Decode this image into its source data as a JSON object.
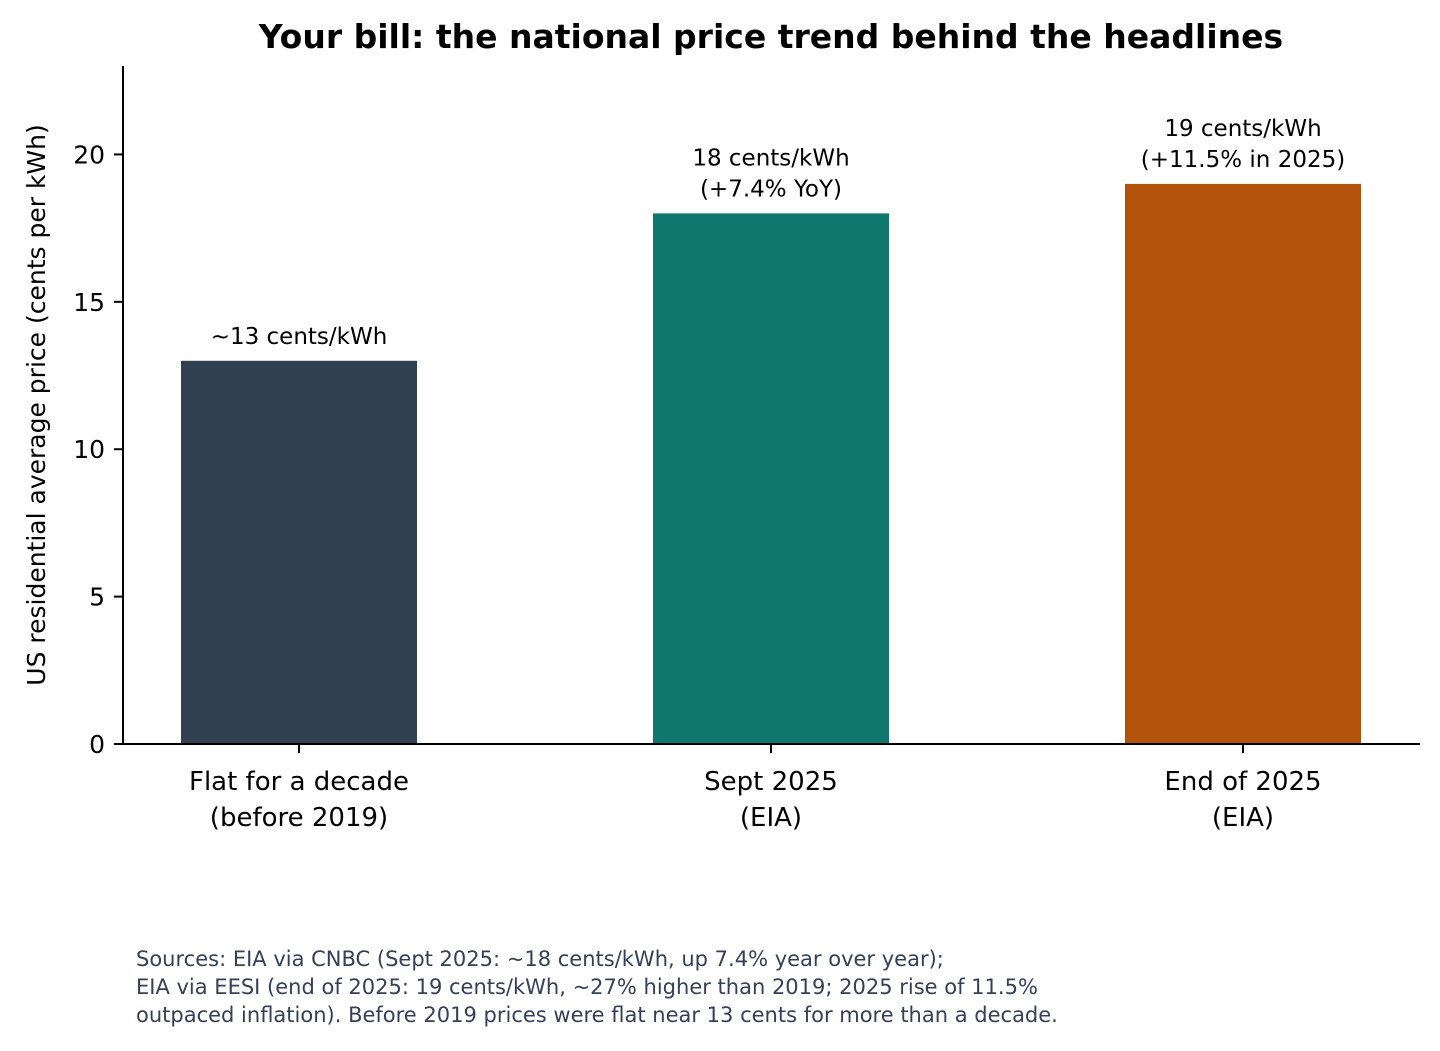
{
  "chart_data": {
    "type": "bar",
    "title": "Your bill: the national price trend behind the headlines",
    "xlabel": "",
    "ylabel": "US residential average price (cents per kWh)",
    "ylim": [
      0,
      23
    ],
    "yticks": [
      0,
      5,
      10,
      15,
      20
    ],
    "grid": false,
    "categories": [
      [
        "Flat for a decade",
        "(before 2019)"
      ],
      [
        "Sept 2025",
        "(EIA)"
      ],
      [
        "End of 2025",
        "(EIA)"
      ]
    ],
    "values": [
      13,
      18,
      19
    ],
    "bar_colors": [
      "#324152",
      "#10776f",
      "#b2520b"
    ],
    "data_labels": [
      [
        "~13 cents/kWh"
      ],
      [
        "18 cents/kWh",
        "(+7.4% YoY)"
      ],
      [
        "19 cents/kWh",
        "(+11.5% in 2025)"
      ]
    ]
  },
  "sources": [
    "Sources: EIA via CNBC (Sept 2025: ~18 cents/kWh, up 7.4% year over year);",
    "EIA via EESI (end of 2025: 19 cents/kWh, ~27% higher than 2019; 2025 rise of 11.5%",
    "outpaced inflation). Before 2019 prices were flat near 13 cents for more than a decade."
  ]
}
